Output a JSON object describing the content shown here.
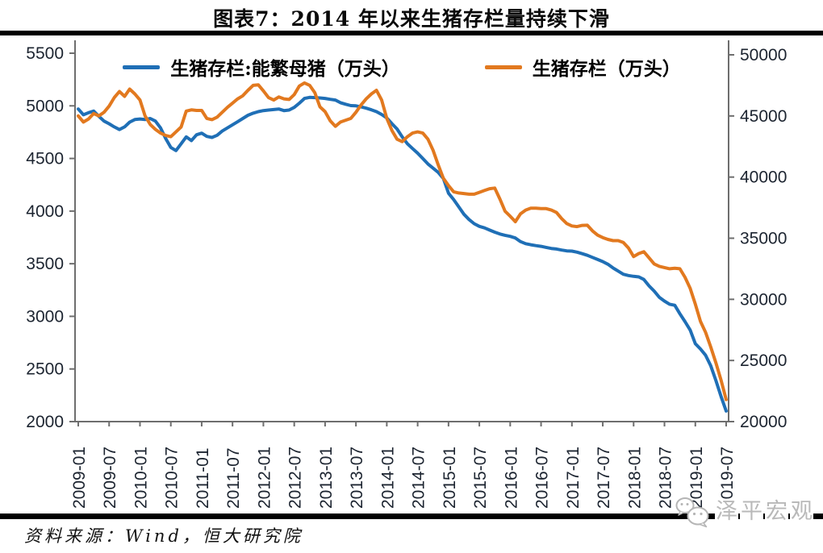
{
  "title": "图表7：2014 年以来生猪存栏量持续下滑",
  "footer": {
    "source": "资料来源：Wind，恒大研究院",
    "watermark": "泽平宏观",
    "watermark_icon": "wechat-icon"
  },
  "colors": {
    "sow_line": "#1F6FB6",
    "pig_line": "#E2791F",
    "axis": "#6e6e6e",
    "tick_label": "#1c2430",
    "divider": "#000000",
    "watermark": "#b9b9b9"
  },
  "chart_data": {
    "type": "line",
    "frequency": "monthly",
    "x_start": "2009-01",
    "x_end": "2019-07",
    "x_tick_labels": [
      "2009-01",
      "2009-07",
      "2010-01",
      "2010-07",
      "2011-01",
      "2011-07",
      "2012-01",
      "2012-07",
      "2013-01",
      "2013-07",
      "2014-01",
      "2014-07",
      "2015-01",
      "2015-07",
      "2016-01",
      "2016-07",
      "2017-01",
      "2017-07",
      "2018-01",
      "2018-07",
      "2019-01",
      "2019-07"
    ],
    "left_axis": {
      "min": 2000,
      "max": 5500,
      "step": 500,
      "ticks": [
        5500,
        5000,
        4500,
        4000,
        3500,
        3000,
        2500,
        2000
      ]
    },
    "right_axis": {
      "min": 20000,
      "max": 50000,
      "step": 5000,
      "ticks": [
        50000,
        45000,
        40000,
        35000,
        30000,
        25000,
        20000
      ]
    },
    "grid": false,
    "legend_position": "top-center",
    "series": [
      {
        "name": "生猪存栏:能繁母猪（万头）",
        "axis": "left",
        "color": "#1F6FB6",
        "values": [
          4970,
          4915,
          4935,
          4950,
          4900,
          4855,
          4830,
          4800,
          4775,
          4800,
          4845,
          4870,
          4875,
          4870,
          4880,
          4855,
          4790,
          4690,
          4605,
          4575,
          4640,
          4705,
          4670,
          4725,
          4740,
          4710,
          4700,
          4720,
          4760,
          4790,
          4820,
          4850,
          4880,
          4910,
          4930,
          4945,
          4955,
          4960,
          4965,
          4970,
          4955,
          4960,
          4985,
          5025,
          5070,
          5080,
          5078,
          5075,
          5070,
          5062,
          5055,
          5030,
          5015,
          5002,
          5000,
          4990,
          4978,
          4962,
          4945,
          4918,
          4885,
          4830,
          4780,
          4705,
          4640,
          4595,
          4550,
          4500,
          4448,
          4408,
          4368,
          4310,
          4170,
          4110,
          4040,
          3970,
          3920,
          3880,
          3855,
          3840,
          3820,
          3800,
          3782,
          3770,
          3760,
          3745,
          3710,
          3690,
          3680,
          3672,
          3665,
          3655,
          3645,
          3640,
          3630,
          3622,
          3620,
          3610,
          3595,
          3580,
          3560,
          3540,
          3520,
          3495,
          3460,
          3430,
          3400,
          3388,
          3380,
          3375,
          3350,
          3290,
          3240,
          3180,
          3145,
          3115,
          3105,
          3025,
          2950,
          2870,
          2740,
          2690,
          2630,
          2530,
          2390,
          2240,
          2100
        ]
      },
      {
        "name": "生猪存栏（万头）",
        "axis": "right",
        "color": "#E2791F",
        "values": [
          45000,
          44500,
          44750,
          45200,
          45000,
          45300,
          45800,
          46500,
          47000,
          46600,
          47200,
          46800,
          46300,
          45000,
          44300,
          43900,
          43600,
          43400,
          43300,
          43700,
          44100,
          45400,
          45500,
          45450,
          45450,
          44800,
          44700,
          44900,
          45300,
          45700,
          46050,
          46400,
          46650,
          47100,
          47500,
          47550,
          47050,
          46500,
          46300,
          46550,
          46400,
          46350,
          46750,
          47450,
          47700,
          47500,
          46900,
          45750,
          45350,
          44600,
          44150,
          44500,
          44650,
          44800,
          45300,
          45900,
          46400,
          46800,
          47100,
          46300,
          44800,
          43800,
          43100,
          42900,
          43300,
          43600,
          43700,
          43600,
          43100,
          42200,
          41000,
          39900,
          39300,
          38800,
          38700,
          38650,
          38600,
          38600,
          38750,
          38900,
          39050,
          39100,
          38200,
          37200,
          36800,
          36350,
          37000,
          37300,
          37450,
          37450,
          37420,
          37420,
          37300,
          37100,
          36600,
          36200,
          36000,
          35950,
          36050,
          36060,
          35600,
          35250,
          35050,
          34900,
          34800,
          34800,
          34650,
          34200,
          33500,
          33750,
          33890,
          33400,
          32900,
          32700,
          32600,
          32500,
          32550,
          32500,
          31800,
          30900,
          29600,
          28200,
          27300,
          26100,
          24800,
          23400,
          21800
        ]
      }
    ]
  }
}
